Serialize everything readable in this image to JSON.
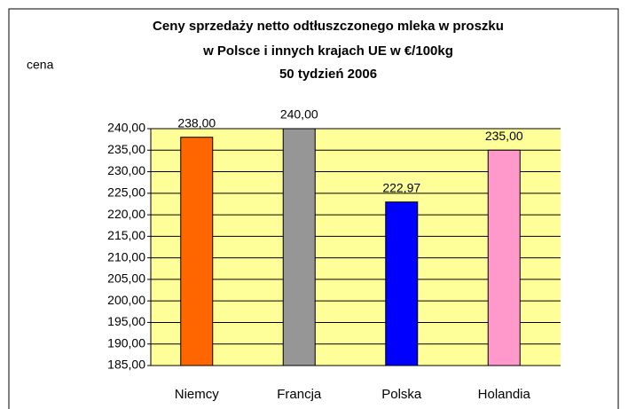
{
  "chart_data": {
    "type": "bar",
    "title": [
      "Ceny sprzedaży netto odtłuszczonego mleka w proszku",
      "w Polsce i innych krajach UE w €/100kg",
      "50 tydzień 2006"
    ],
    "y_label": "cena",
    "categories": [
      "Niemcy",
      "Francja",
      "Polska",
      "Holandia"
    ],
    "values": [
      238,
      240,
      222.97,
      235
    ],
    "value_labels": [
      "238,00",
      "240,00",
      "222,97",
      "235,00"
    ],
    "colors": [
      "#ff6600",
      "#969696",
      "#0000ff",
      "#ff99cc"
    ],
    "ylim": [
      185,
      240
    ],
    "yticks": [
      {
        "value": 185,
        "label": "185,00"
      },
      {
        "value": 190,
        "label": "190,00"
      },
      {
        "value": 195,
        "label": "195,00"
      },
      {
        "value": 200,
        "label": "200,00"
      },
      {
        "value": 205,
        "label": "205,00"
      },
      {
        "value": 210,
        "label": "210,00"
      },
      {
        "value": 215,
        "label": "215,00"
      },
      {
        "value": 220,
        "label": "220,00"
      },
      {
        "value": 225,
        "label": "225,00"
      },
      {
        "value": 230,
        "label": "230,00"
      },
      {
        "value": 235,
        "label": "235,00"
      },
      {
        "value": 240,
        "label": "240,00"
      }
    ],
    "grid": true
  }
}
